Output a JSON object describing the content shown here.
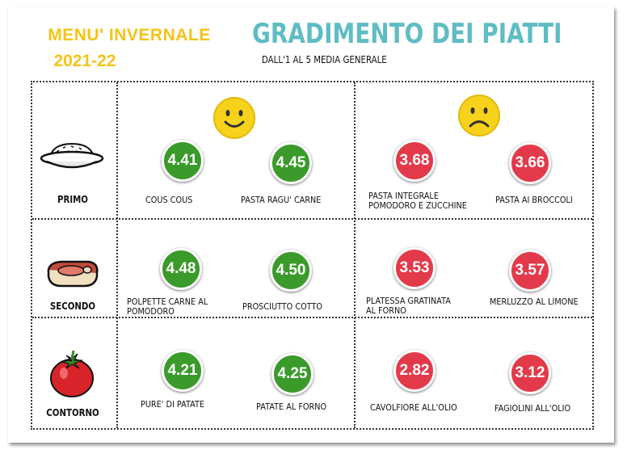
{
  "header": {
    "left_line1": "MENU' INVERNALE",
    "left_line2": "2021-22",
    "title": "GRADIMENTO DEI PIATTI",
    "subtitle": "DALL'1 AL 5 MEDIA GENERALE"
  },
  "rows": [
    {
      "label": "PRIMO",
      "icon": "rice-plate-icon",
      "liked": [
        {
          "score": "4.41",
          "dish": "COUS COUS"
        },
        {
          "score": "4.45",
          "dish": "PASTA RAGU' CARNE"
        }
      ],
      "disliked": [
        {
          "score": "3.68",
          "dish_l1": "PASTA INTEGRALE",
          "dish_l2": "POMODORO E ZUCCHINE"
        },
        {
          "score": "3.66",
          "dish_l1": "PASTA AI BROCCOLI",
          "dish_l2": ""
        }
      ]
    },
    {
      "label": "SECONDO",
      "icon": "steak-icon",
      "liked": [
        {
          "score": "4.48",
          "dish_l1": "POLPETTE CARNE AL",
          "dish_l2": "POMODORO"
        },
        {
          "score": "4.50",
          "dish_l1": "PROSCIUTTO COTTO",
          "dish_l2": ""
        }
      ],
      "disliked": [
        {
          "score": "3.53",
          "dish_l1": "PLATESSA GRATINATA",
          "dish_l2": "AL FORNO"
        },
        {
          "score": "3.57",
          "dish_l1": "MERLUZZO AL LIMONE",
          "dish_l2": ""
        }
      ]
    },
    {
      "label": "CONTORNO",
      "icon": "tomato-icon",
      "liked": [
        {
          "score": "4.21",
          "dish": "PURE' DI PATATE"
        },
        {
          "score": "4.25",
          "dish": "PATATE AL FORNO"
        }
      ],
      "disliked": [
        {
          "score": "2.82",
          "dish": "CAVOLFIORE ALL'OLIO"
        },
        {
          "score": "3.12",
          "dish": "FAGIOLINI ALL'OLIO"
        }
      ]
    }
  ],
  "colors": {
    "liked": "#3a9a2a",
    "disliked": "#e33a4b",
    "title": "#5fbcc4",
    "yellow": "#f5c317"
  },
  "faces": {
    "liked": "smiley-happy-icon",
    "disliked": "smiley-sad-icon"
  }
}
